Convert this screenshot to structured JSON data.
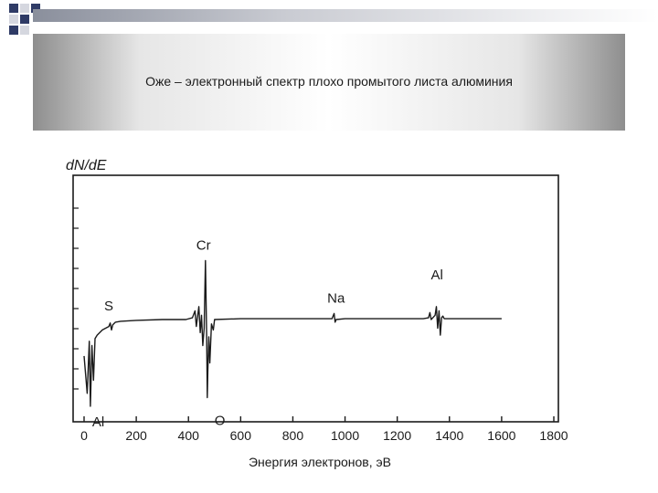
{
  "slide": {
    "title": "Оже – электронный спектр плохо промытого листа алюминия"
  },
  "chart_data": {
    "type": "line",
    "ylabel": "dN/dE",
    "xlabel": "Энергия электронов, эВ",
    "xlim": [
      0,
      1800
    ],
    "xticks": [
      0,
      200,
      400,
      600,
      800,
      1000,
      1200,
      1400,
      1600,
      1800
    ],
    "y_axis_values_shown": false,
    "grid": false,
    "series": [
      {
        "points": [
          [
            0,
            -12
          ],
          [
            12,
            -55
          ],
          [
            20,
            5
          ],
          [
            24,
            -70
          ],
          [
            30,
            0
          ],
          [
            36,
            -40
          ],
          [
            42,
            8
          ],
          [
            50,
            12
          ],
          [
            70,
            18
          ],
          [
            95,
            22
          ],
          [
            100,
            26
          ],
          [
            105,
            18
          ],
          [
            110,
            24
          ],
          [
            120,
            27
          ],
          [
            140,
            28
          ],
          [
            200,
            29
          ],
          [
            300,
            30
          ],
          [
            390,
            30
          ],
          [
            415,
            32
          ],
          [
            425,
            40
          ],
          [
            430,
            22
          ],
          [
            440,
            45
          ],
          [
            445,
            15
          ],
          [
            450,
            35
          ],
          [
            455,
            0
          ],
          [
            460,
            20
          ],
          [
            465,
            98
          ],
          [
            470,
            5
          ],
          [
            472,
            -60
          ],
          [
            474,
            -30
          ],
          [
            478,
            10
          ],
          [
            482,
            -20
          ],
          [
            488,
            25
          ],
          [
            495,
            18
          ],
          [
            500,
            30
          ],
          [
            600,
            31
          ],
          [
            900,
            31
          ],
          [
            950,
            31
          ],
          [
            958,
            37
          ],
          [
            962,
            27
          ],
          [
            966,
            30
          ],
          [
            1000,
            31
          ],
          [
            1200,
            31
          ],
          [
            1300,
            31
          ],
          [
            1320,
            32
          ],
          [
            1325,
            38
          ],
          [
            1330,
            30
          ],
          [
            1345,
            35
          ],
          [
            1350,
            45
          ],
          [
            1355,
            20
          ],
          [
            1360,
            40
          ],
          [
            1365,
            12
          ],
          [
            1370,
            32
          ],
          [
            1375,
            34
          ],
          [
            1380,
            31
          ],
          [
            1400,
            31
          ],
          [
            1600,
            31
          ]
        ]
      }
    ],
    "annotations": [
      {
        "text": "Cr",
        "x": 465,
        "y": 98
      },
      {
        "text": "S",
        "x": 105,
        "y": 26
      },
      {
        "text": "Na",
        "x": 960,
        "y": 37
      },
      {
        "text": "Al",
        "x": 1350,
        "y": 45
      },
      {
        "text": "O",
        "x": 472,
        "y": -60
      },
      {
        "text": "Al",
        "x": 24,
        "y": -70
      }
    ]
  }
}
